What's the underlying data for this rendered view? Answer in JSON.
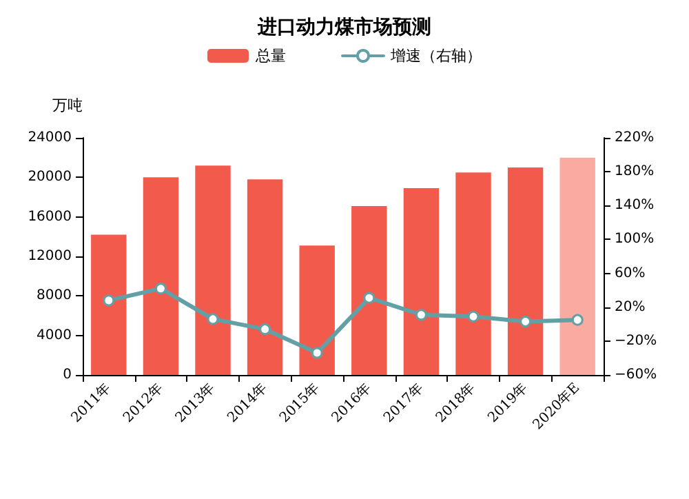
{
  "chart_data": {
    "type": "bar",
    "title": "进口动力煤市场预测",
    "ylabel": "万吨",
    "categories": [
      "2011年",
      "2012年",
      "2013年",
      "2014年",
      "2015年",
      "2016年",
      "2017年",
      "2018年",
      "2019年",
      "2020年E"
    ],
    "series": [
      {
        "name": "总量",
        "color": "#f25b4c",
        "colors": [
          "#f25b4c",
          "#f25b4c",
          "#f25b4c",
          "#f25b4c",
          "#f25b4c",
          "#f25b4c",
          "#f25b4c",
          "#f25b4c",
          "#f25b4c",
          "#f9aaa1"
        ],
        "values": [
          14200,
          20000,
          21200,
          19800,
          13100,
          17100,
          18900,
          20500,
          21000,
          22000
        ]
      },
      {
        "name": "增速（右轴）",
        "type": "line",
        "axis": "y2",
        "color": "#62a0a6",
        "marker": "circle",
        "line_style": "solid",
        "values": [
          28,
          42,
          6,
          -6,
          -34,
          31,
          11,
          9,
          3,
          5
        ]
      }
    ],
    "ylim": [
      0,
      24000
    ],
    "yticks": [
      0,
      4000,
      8000,
      12000,
      16000,
      20000,
      24000
    ],
    "y2lim": [
      -60,
      220
    ],
    "y2ticks": [
      {
        "value": -60,
        "label": "−60%"
      },
      {
        "value": -20,
        "label": "−20%"
      },
      {
        "value": 20,
        "label": "20%"
      },
      {
        "value": 60,
        "label": "60%"
      },
      {
        "value": 100,
        "label": "100%"
      },
      {
        "value": 140,
        "label": "140%"
      },
      {
        "value": 180,
        "label": "180%"
      },
      {
        "value": 220,
        "label": "220%"
      }
    ],
    "grid": false,
    "legend": "top"
  }
}
